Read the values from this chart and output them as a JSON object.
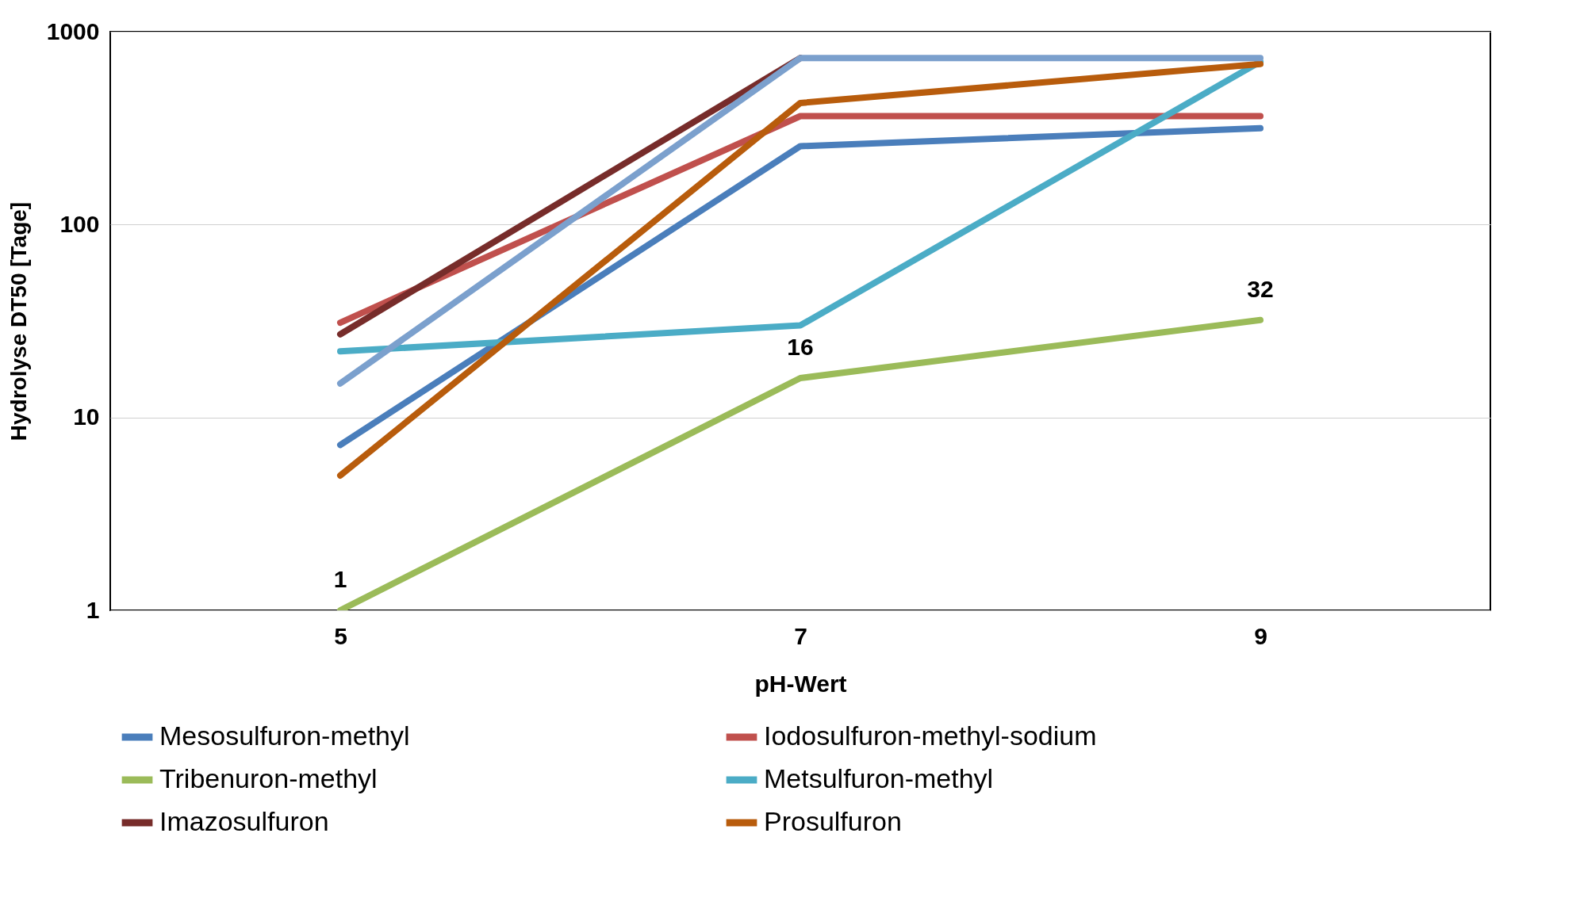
{
  "chart_data": {
    "type": "line",
    "xlabel": "pH-Wert",
    "ylabel": "Hydrolyse DT50 [Tage]",
    "categories": [
      "5",
      "7",
      "9"
    ],
    "log": true,
    "ylim": [
      1,
      1000
    ],
    "yticks": [
      1,
      10,
      100,
      1000
    ],
    "grid": "y",
    "legend": "bottom",
    "series": [
      {
        "name": "Mesosulfuron-methyl",
        "color": "#4a7ebb",
        "values": [
          7.2,
          255,
          316
        ]
      },
      {
        "name": "Iodosulfuron-methyl-sodium",
        "color": "#c0504d",
        "values": [
          31,
          365,
          365
        ]
      },
      {
        "name": "Tribenuron-methyl",
        "color": "#9bbb59",
        "values": [
          1,
          16,
          32
        ],
        "value_labels": [
          "1",
          "16",
          "32"
        ]
      },
      {
        "name": "Metsulfuron-methyl",
        "color": "#4bacc6",
        "values": [
          22,
          30,
          700
        ]
      },
      {
        "name": "Imazosulfuron",
        "color": "#772c2a",
        "values": [
          27,
          730,
          null
        ]
      },
      {
        "name": "Prosulfuron",
        "color": "#b85c0c",
        "values": [
          5,
          427,
          680
        ]
      },
      {
        "color": "#7ba0cd",
        "values": [
          15,
          730,
          730
        ]
      }
    ]
  }
}
